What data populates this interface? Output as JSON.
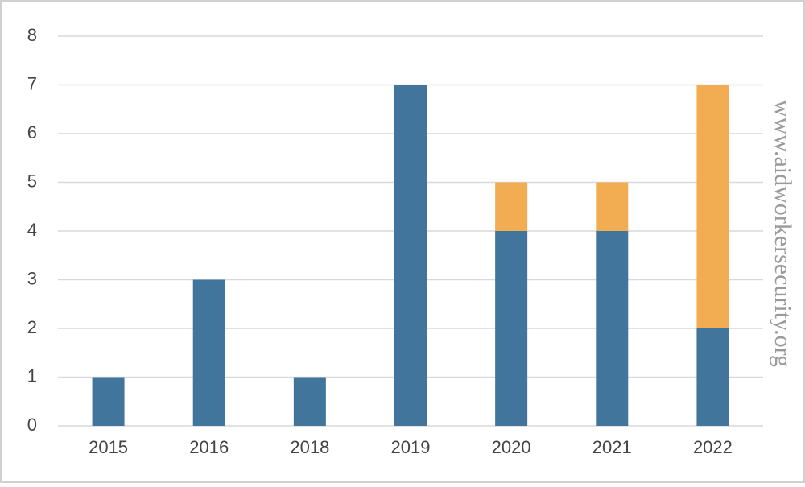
{
  "chart_data": {
    "type": "stacked_bar",
    "categories": [
      "2015",
      "2016",
      "2018",
      "2019",
      "2020",
      "2021",
      "2022"
    ],
    "series": [
      {
        "color": "#41759b",
        "values": [
          1,
          3,
          1,
          7,
          4,
          4,
          2
        ]
      },
      {
        "color": "#f2ad52",
        "values": [
          0,
          0,
          0,
          0,
          1,
          1,
          5
        ]
      }
    ],
    "ylim": [
      0,
      8
    ],
    "yticks": [
      0,
      1,
      2,
      3,
      4,
      5,
      6,
      7,
      8
    ],
    "grid": true,
    "watermark": "www.aidworkersecurity.org"
  }
}
